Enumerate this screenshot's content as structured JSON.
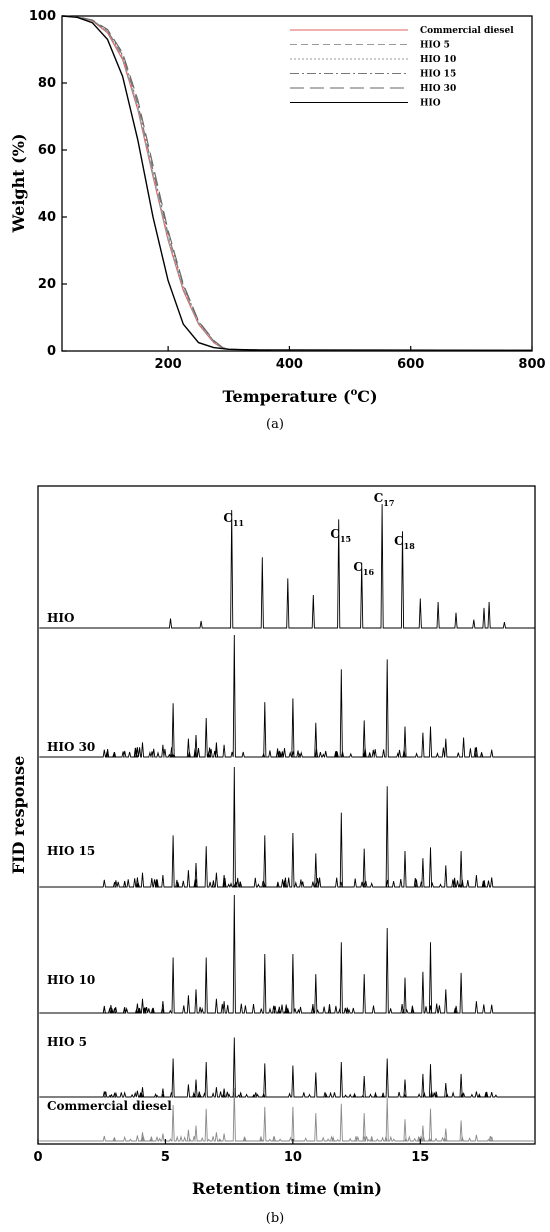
{
  "chart_data": [
    {
      "type": "line",
      "xlabel": "Temperature (oC)",
      "xlabel_main": "Temperature (",
      "xlabel_sup": "o",
      "xlabel_end": "C)",
      "ylabel": "Weight (%)",
      "xlim": [
        25,
        800
      ],
      "ylim": [
        0,
        100
      ],
      "xticks": [
        200,
        400,
        600,
        800
      ],
      "yticks": [
        0,
        20,
        40,
        60,
        80,
        100
      ],
      "caption": "(a)",
      "legend_position": "top-right",
      "series": [
        {
          "name": "Commercial diesel",
          "color": "#e06060",
          "dash": "",
          "x": [
            25,
            50,
            75,
            100,
            125,
            150,
            175,
            200,
            225,
            250,
            275,
            290,
            300,
            350,
            800
          ],
          "y": [
            100,
            99.7,
            98.5,
            95,
            87,
            72,
            52,
            33,
            18,
            8,
            2.5,
            0.8,
            0.5,
            0.3,
            0.2
          ]
        },
        {
          "name": "HIO 5",
          "color": "#9a9a9a",
          "dash": "7,4",
          "x": [
            25,
            50,
            75,
            100,
            125,
            150,
            175,
            200,
            225,
            250,
            275,
            290,
            300,
            350,
            800
          ],
          "y": [
            100,
            99.7,
            98.6,
            95.3,
            87.5,
            72.5,
            52.5,
            33.5,
            18.5,
            8.3,
            2.7,
            0.8,
            0.5,
            0.3,
            0.2
          ]
        },
        {
          "name": "HIO 10",
          "color": "#9a9a9a",
          "dash": "2,2",
          "x": [
            25,
            50,
            75,
            100,
            125,
            150,
            175,
            200,
            225,
            250,
            275,
            290,
            300,
            350,
            800
          ],
          "y": [
            100,
            99.7,
            98.6,
            95.4,
            87.8,
            73,
            53,
            34,
            19,
            8.5,
            2.8,
            0.9,
            0.5,
            0.3,
            0.2
          ]
        },
        {
          "name": "HIO 15",
          "color": "#777777",
          "dash": "9,3,2,3",
          "x": [
            25,
            50,
            75,
            100,
            125,
            150,
            175,
            200,
            225,
            250,
            275,
            290,
            300,
            350,
            800
          ],
          "y": [
            100,
            99.7,
            98.7,
            95.6,
            88.3,
            73.8,
            54,
            35,
            19.5,
            8.8,
            3,
            1,
            0.5,
            0.3,
            0.2
          ]
        },
        {
          "name": "HIO 30",
          "color": "#666666",
          "dash": "14,6",
          "x": [
            25,
            50,
            75,
            100,
            125,
            150,
            175,
            200,
            225,
            250,
            275,
            290,
            300,
            350,
            800
          ],
          "y": [
            100,
            99.8,
            98.8,
            96,
            89,
            75,
            55.5,
            36,
            20,
            9,
            3.2,
            1,
            0.5,
            0.3,
            0.2
          ]
        },
        {
          "name": "HIO",
          "color": "#000000",
          "dash": "",
          "x": [
            25,
            50,
            75,
            100,
            125,
            150,
            175,
            200,
            225,
            250,
            275,
            300,
            350,
            800
          ],
          "y": [
            100,
            99.6,
            98,
            93,
            82,
            63,
            40,
            21,
            8,
            2.5,
            1,
            0.5,
            0.3,
            0.2
          ]
        }
      ]
    },
    {
      "type": "line",
      "xlabel": "Retention time (min)",
      "ylabel": "FID response",
      "xlim": [
        0,
        19.5
      ],
      "xticks": [
        0,
        5,
        10,
        15
      ],
      "caption": "(b)",
      "traces": [
        {
          "name": "HIO",
          "color": "#000000",
          "amp": 1.0,
          "peaks": [
            [
              5.2,
              0.08
            ],
            [
              6.4,
              0.06
            ],
            [
              7.6,
              1.0
            ],
            [
              8.8,
              0.6
            ],
            [
              9.8,
              0.42
            ],
            [
              10.8,
              0.28
            ],
            [
              11.8,
              0.92
            ],
            [
              12.7,
              0.55
            ],
            [
              13.5,
              1.05
            ],
            [
              14.3,
              0.82
            ],
            [
              15.0,
              0.25
            ],
            [
              15.7,
              0.22
            ],
            [
              16.4,
              0.13
            ],
            [
              17.1,
              0.07
            ],
            [
              17.5,
              0.17
            ],
            [
              17.7,
              0.22
            ],
            [
              18.3,
              0.05
            ]
          ]
        },
        {
          "name": "HIO 30",
          "color": "#000000",
          "amp": 1.0,
          "peaks": [
            [
              2.6,
              0.06
            ],
            [
              3.0,
              0.04
            ],
            [
              3.4,
              0.05
            ],
            [
              3.9,
              0.08
            ],
            [
              4.1,
              0.12
            ],
            [
              4.9,
              0.1
            ],
            [
              5.3,
              0.44
            ],
            [
              5.9,
              0.15
            ],
            [
              6.2,
              0.18
            ],
            [
              6.6,
              0.32
            ],
            [
              7.0,
              0.12
            ],
            [
              7.3,
              0.1
            ],
            [
              7.7,
              1.0
            ],
            [
              8.9,
              0.45
            ],
            [
              10.0,
              0.48
            ],
            [
              10.9,
              0.28
            ],
            [
              11.9,
              0.72
            ],
            [
              12.8,
              0.3
            ],
            [
              13.7,
              0.8
            ],
            [
              14.4,
              0.25
            ],
            [
              15.1,
              0.2
            ],
            [
              15.4,
              0.25
            ],
            [
              16.0,
              0.15
            ],
            [
              16.7,
              0.16
            ],
            [
              17.2,
              0.08
            ],
            [
              17.8,
              0.06
            ]
          ]
        },
        {
          "name": "HIO 15",
          "color": "#000000",
          "amp": 1.0,
          "peaks": [
            [
              2.6,
              0.06
            ],
            [
              3.0,
              0.04
            ],
            [
              3.4,
              0.05
            ],
            [
              3.9,
              0.08
            ],
            [
              4.1,
              0.12
            ],
            [
              4.9,
              0.1
            ],
            [
              5.3,
              0.43
            ],
            [
              5.9,
              0.14
            ],
            [
              6.2,
              0.2
            ],
            [
              6.6,
              0.34
            ],
            [
              7.0,
              0.12
            ],
            [
              7.3,
              0.1
            ],
            [
              7.7,
              1.0
            ],
            [
              8.9,
              0.43
            ],
            [
              10.0,
              0.45
            ],
            [
              10.9,
              0.28
            ],
            [
              11.9,
              0.62
            ],
            [
              12.8,
              0.32
            ],
            [
              13.7,
              0.84
            ],
            [
              14.4,
              0.3
            ],
            [
              15.1,
              0.24
            ],
            [
              15.4,
              0.33
            ],
            [
              16.0,
              0.18
            ],
            [
              16.6,
              0.3
            ],
            [
              17.2,
              0.1
            ],
            [
              17.8,
              0.08
            ]
          ]
        },
        {
          "name": "HIO 10",
          "color": "#000000",
          "amp": 1.0,
          "peaks": [
            [
              2.6,
              0.06
            ],
            [
              3.0,
              0.04
            ],
            [
              3.4,
              0.05
            ],
            [
              3.9,
              0.08
            ],
            [
              4.1,
              0.12
            ],
            [
              4.9,
              0.1
            ],
            [
              5.3,
              0.47
            ],
            [
              5.9,
              0.15
            ],
            [
              6.2,
              0.2
            ],
            [
              6.6,
              0.47
            ],
            [
              7.0,
              0.12
            ],
            [
              7.3,
              0.1
            ],
            [
              7.7,
              1.0
            ],
            [
              8.9,
              0.5
            ],
            [
              10.0,
              0.5
            ],
            [
              10.9,
              0.33
            ],
            [
              11.9,
              0.6
            ],
            [
              12.8,
              0.33
            ],
            [
              13.7,
              0.72
            ],
            [
              14.4,
              0.3
            ],
            [
              15.1,
              0.35
            ],
            [
              15.4,
              0.6
            ],
            [
              16.0,
              0.2
            ],
            [
              16.6,
              0.34
            ],
            [
              17.2,
              0.1
            ],
            [
              17.8,
              0.07
            ]
          ]
        },
        {
          "name": "HIO 5",
          "color": "#000000",
          "amp": 1.0,
          "peaks": [
            [
              2.6,
              0.08
            ],
            [
              3.0,
              0.05
            ],
            [
              3.4,
              0.06
            ],
            [
              3.9,
              0.09
            ],
            [
              4.1,
              0.14
            ],
            [
              4.9,
              0.12
            ],
            [
              5.3,
              0.55
            ],
            [
              5.9,
              0.18
            ],
            [
              6.2,
              0.25
            ],
            [
              6.6,
              0.5
            ],
            [
              7.0,
              0.14
            ],
            [
              7.3,
              0.12
            ],
            [
              7.7,
              0.85
            ],
            [
              8.9,
              0.48
            ],
            [
              10.0,
              0.45
            ],
            [
              10.9,
              0.35
            ],
            [
              11.9,
              0.5
            ],
            [
              12.8,
              0.3
            ],
            [
              13.7,
              0.55
            ],
            [
              14.4,
              0.25
            ],
            [
              15.1,
              0.33
            ],
            [
              15.4,
              0.47
            ],
            [
              16.0,
              0.2
            ],
            [
              16.6,
              0.33
            ],
            [
              17.2,
              0.08
            ],
            [
              17.8,
              0.07
            ]
          ]
        },
        {
          "name": "Commercial diesel",
          "color": "#8a8a8a",
          "amp": 1.0,
          "peaks": [
            [
              2.6,
              0.08
            ],
            [
              3.0,
              0.05
            ],
            [
              3.4,
              0.06
            ],
            [
              3.9,
              0.09
            ],
            [
              4.1,
              0.14
            ],
            [
              4.9,
              0.12
            ],
            [
              5.3,
              0.58
            ],
            [
              5.9,
              0.18
            ],
            [
              6.2,
              0.25
            ],
            [
              6.6,
              0.52
            ],
            [
              7.0,
              0.14
            ],
            [
              7.3,
              0.12
            ],
            [
              7.7,
              0.86
            ],
            [
              8.9,
              0.55
            ],
            [
              10.0,
              0.55
            ],
            [
              10.9,
              0.45
            ],
            [
              11.9,
              0.6
            ],
            [
              12.8,
              0.45
            ],
            [
              13.7,
              0.7
            ],
            [
              14.4,
              0.35
            ],
            [
              15.1,
              0.25
            ],
            [
              15.4,
              0.52
            ],
            [
              16.0,
              0.2
            ],
            [
              16.6,
              0.33
            ],
            [
              17.2,
              0.1
            ],
            [
              17.8,
              0.07
            ]
          ]
        }
      ],
      "peak_labels": [
        {
          "base": "C",
          "sub": "11",
          "x": 7.6
        },
        {
          "base": "C",
          "sub": "15",
          "x": 11.8
        },
        {
          "base": "C",
          "sub": "16",
          "x": 12.7
        },
        {
          "base": "C",
          "sub": "17",
          "x": 13.5
        },
        {
          "base": "C",
          "sub": "18",
          "x": 14.3
        }
      ]
    }
  ]
}
